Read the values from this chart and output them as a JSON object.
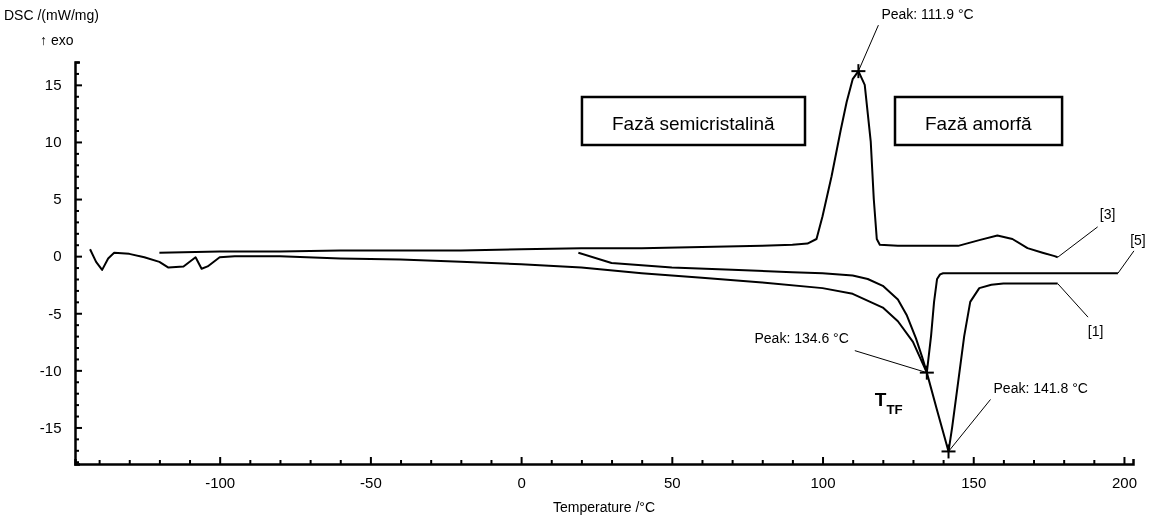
{
  "chart_data": {
    "type": "line",
    "ylabel": "DSC /(mW/mg)\n↑ exo",
    "xlabel": "Temperature /°C",
    "xlim": [
      -148,
      203
    ],
    "ylim": [
      -18.2,
      17
    ],
    "xticks": [
      {
        "value": -140,
        "label": null
      },
      {
        "value": -130,
        "label": null
      },
      {
        "value": -120,
        "label": null
      },
      {
        "value": -110,
        "label": null
      },
      -100,
      {
        "value": -90,
        "label": null
      },
      {
        "value": -80,
        "label": null
      },
      {
        "value": -70,
        "label": null
      },
      {
        "value": -60,
        "label": null
      },
      -50,
      {
        "value": -40,
        "label": null
      },
      {
        "value": -30,
        "label": null
      },
      {
        "value": -20,
        "label": null
      },
      {
        "value": -10,
        "label": null
      },
      0,
      {
        "value": 10,
        "label": null
      },
      {
        "value": 20,
        "label": null
      },
      {
        "value": 30,
        "label": null
      },
      {
        "value": 40,
        "label": null
      },
      50,
      {
        "value": 60,
        "label": null
      },
      {
        "value": 70,
        "label": null
      },
      {
        "value": 80,
        "label": null
      },
      {
        "value": 90,
        "label": null
      },
      100,
      {
        "value": 110,
        "label": null
      },
      {
        "value": 120,
        "label": null
      },
      {
        "value": 130,
        "label": null
      },
      {
        "value": 140,
        "label": null
      },
      150,
      {
        "value": 160,
        "label": null
      },
      {
        "value": 170,
        "label": null
      },
      {
        "value": 180,
        "label": null
      },
      {
        "value": 190,
        "label": null
      },
      200
    ],
    "yticks": [
      {
        "value": -18,
        "label": null
      },
      {
        "value": -17,
        "label": null
      },
      {
        "value": -16,
        "label": null
      },
      -15,
      {
        "value": -14,
        "label": null
      },
      {
        "value": -13,
        "label": null
      },
      {
        "value": -12,
        "label": null
      },
      {
        "value": -11,
        "label": null
      },
      -10,
      {
        "value": -9,
        "label": null
      },
      {
        "value": -8,
        "label": null
      },
      {
        "value": -7,
        "label": null
      },
      {
        "value": -6,
        "label": null
      },
      -5,
      {
        "value": -4,
        "label": null
      },
      {
        "value": -3,
        "label": null
      },
      {
        "value": -2,
        "label": null
      },
      {
        "value": -1,
        "label": null
      },
      0,
      {
        "value": 1,
        "label": null
      },
      {
        "value": 2,
        "label": null
      },
      {
        "value": 3,
        "label": null
      },
      {
        "value": 4,
        "label": null
      },
      5,
      {
        "value": 6,
        "label": null
      },
      {
        "value": 7,
        "label": null
      },
      {
        "value": 8,
        "label": null
      },
      {
        "value": 9,
        "label": null
      },
      10,
      {
        "value": 11,
        "label": null
      },
      {
        "value": 12,
        "label": null
      },
      {
        "value": 13,
        "label": null
      },
      {
        "value": 14,
        "label": null
      },
      15,
      {
        "value": 16,
        "label": null
      },
      {
        "value": 17,
        "label": null
      }
    ],
    "grid": false,
    "marker": "none",
    "line_style": "solid",
    "series": [
      {
        "name": "[3]",
        "color": "#000000",
        "x": [
          -120,
          -100,
          -80,
          -60,
          -40,
          -20,
          0,
          20,
          40,
          60,
          80,
          90,
          95,
          98,
          100,
          103,
          106,
          108,
          110,
          111.9,
          114,
          116,
          117,
          118,
          119,
          125,
          135,
          145,
          152,
          158,
          163,
          168,
          173,
          177,
          178
        ],
        "values": [
          0.3,
          0.4,
          0.4,
          0.5,
          0.5,
          0.5,
          0.6,
          0.7,
          0.7,
          0.8,
          0.9,
          1.0,
          1.1,
          1.5,
          3.5,
          7,
          11,
          13.5,
          15.5,
          16.2,
          15,
          10,
          5,
          1.5,
          1.0,
          0.9,
          0.9,
          0.9,
          1.4,
          1.8,
          1.5,
          0.7,
          0.3,
          0.0,
          -0.1
        ]
      },
      {
        "name": "[5]",
        "color": "#000000",
        "x": [
          19,
          30,
          50,
          70,
          90,
          100,
          110,
          115,
          120,
          125,
          128,
          131,
          133,
          134.6,
          136,
          137,
          138,
          139,
          140,
          150,
          170,
          198
        ],
        "values": [
          0.3,
          -0.6,
          -1.0,
          -1.2,
          -1.4,
          -1.5,
          -1.7,
          -2.0,
          -2.6,
          -3.8,
          -5.2,
          -7.2,
          -8.8,
          -10.2,
          -7,
          -4,
          -2,
          -1.6,
          -1.5,
          -1.5,
          -1.5,
          -1.5
        ]
      },
      {
        "name": "[1]",
        "color": "#000000",
        "x": [
          -143,
          -141,
          -139,
          -137,
          -135,
          -130,
          -125,
          -120,
          -117,
          -112,
          -108,
          -106,
          -104,
          -100,
          -95,
          -80,
          -60,
          -40,
          -20,
          0,
          20,
          40,
          60,
          80,
          100,
          110,
          120,
          125,
          130,
          134.6,
          138,
          141.8,
          143,
          145,
          147,
          149,
          152,
          156,
          160,
          170,
          178
        ],
        "values": [
          0.6,
          -0.5,
          -1.2,
          -0.2,
          0.3,
          0.2,
          -0.1,
          -0.5,
          -1.0,
          -0.9,
          -0.1,
          -1.1,
          -0.9,
          -0.1,
          0.0,
          0.0,
          -0.2,
          -0.3,
          -0.5,
          -0.7,
          -1.0,
          -1.5,
          -1.9,
          -2.3,
          -2.8,
          -3.3,
          -4.5,
          -5.7,
          -7.5,
          -10.2,
          -13.5,
          -17.1,
          -15,
          -11,
          -7,
          -4,
          -2.8,
          -2.5,
          -2.4,
          -2.4,
          -2.4
        ]
      }
    ],
    "annotations": [
      {
        "text": "Peak: 111.9 °C",
        "x": 111.9,
        "y": 16.2
      },
      {
        "text": "Peak: 134.6 °C",
        "x": 134.6,
        "y": -10.2
      },
      {
        "text": "Peak: 141.8 °C",
        "x": 141.8,
        "y": -17.1
      },
      {
        "text": "T$_{TF}$",
        "x": 134.6,
        "y": -10.2
      },
      "Fază semicristalină",
      "Fază amorfă"
    ]
  }
}
